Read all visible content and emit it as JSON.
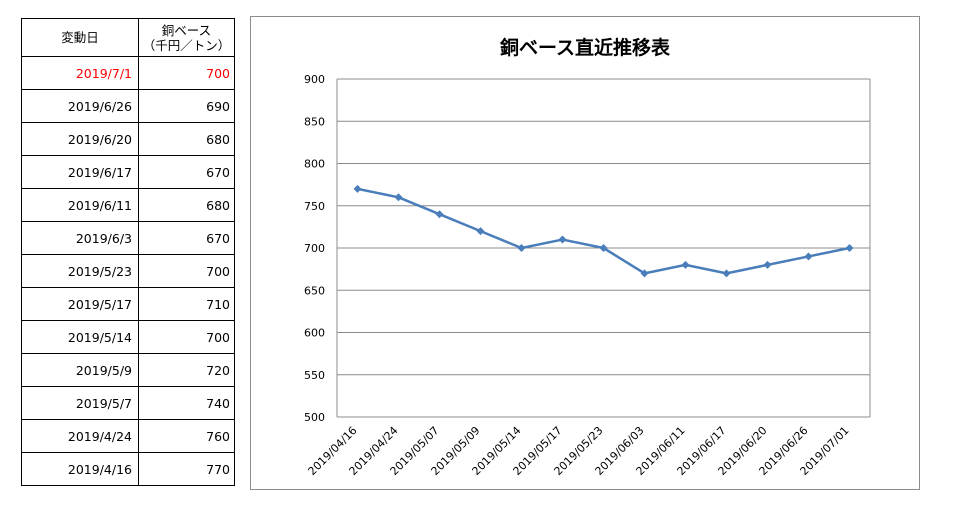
{
  "table": {
    "header": {
      "date": "変動日",
      "price_line1": "銅ベース",
      "price_line2": "（千円／トン）"
    },
    "rows": [
      {
        "date": "2019/7/1",
        "price": "700",
        "latest": true
      },
      {
        "date": "2019/6/26",
        "price": "690"
      },
      {
        "date": "2019/6/20",
        "price": "680"
      },
      {
        "date": "2019/6/17",
        "price": "670"
      },
      {
        "date": "2019/6/11",
        "price": "680"
      },
      {
        "date": "2019/6/3",
        "price": "670"
      },
      {
        "date": "2019/5/23",
        "price": "700"
      },
      {
        "date": "2019/5/17",
        "price": "710"
      },
      {
        "date": "2019/5/14",
        "price": "700"
      },
      {
        "date": "2019/5/9",
        "price": "720"
      },
      {
        "date": "2019/5/7",
        "price": "740"
      },
      {
        "date": "2019/4/24",
        "price": "760"
      },
      {
        "date": "2019/4/16",
        "price": "770"
      }
    ],
    "latest_color": "#ff0000"
  },
  "chart_data": {
    "type": "line",
    "title": "銅ベース直近推移表",
    "xlabel": "",
    "ylabel": "",
    "categories": [
      "2019/04/16",
      "2019/04/24",
      "2019/05/07",
      "2019/05/09",
      "2019/05/14",
      "2019/05/17",
      "2019/05/23",
      "2019/06/03",
      "2019/06/11",
      "2019/06/17",
      "2019/06/20",
      "2019/06/26",
      "2019/07/01"
    ],
    "series": [
      {
        "values": [
          770,
          760,
          740,
          720,
          700,
          710,
          700,
          670,
          680,
          670,
          680,
          690,
          700
        ],
        "color": "#4a7ebb"
      }
    ],
    "ylim": [
      500,
      900
    ],
    "yticks": [
      500,
      550,
      600,
      650,
      700,
      750,
      800,
      850,
      900
    ],
    "grid": true,
    "marker": "diamond",
    "legend": "none"
  }
}
